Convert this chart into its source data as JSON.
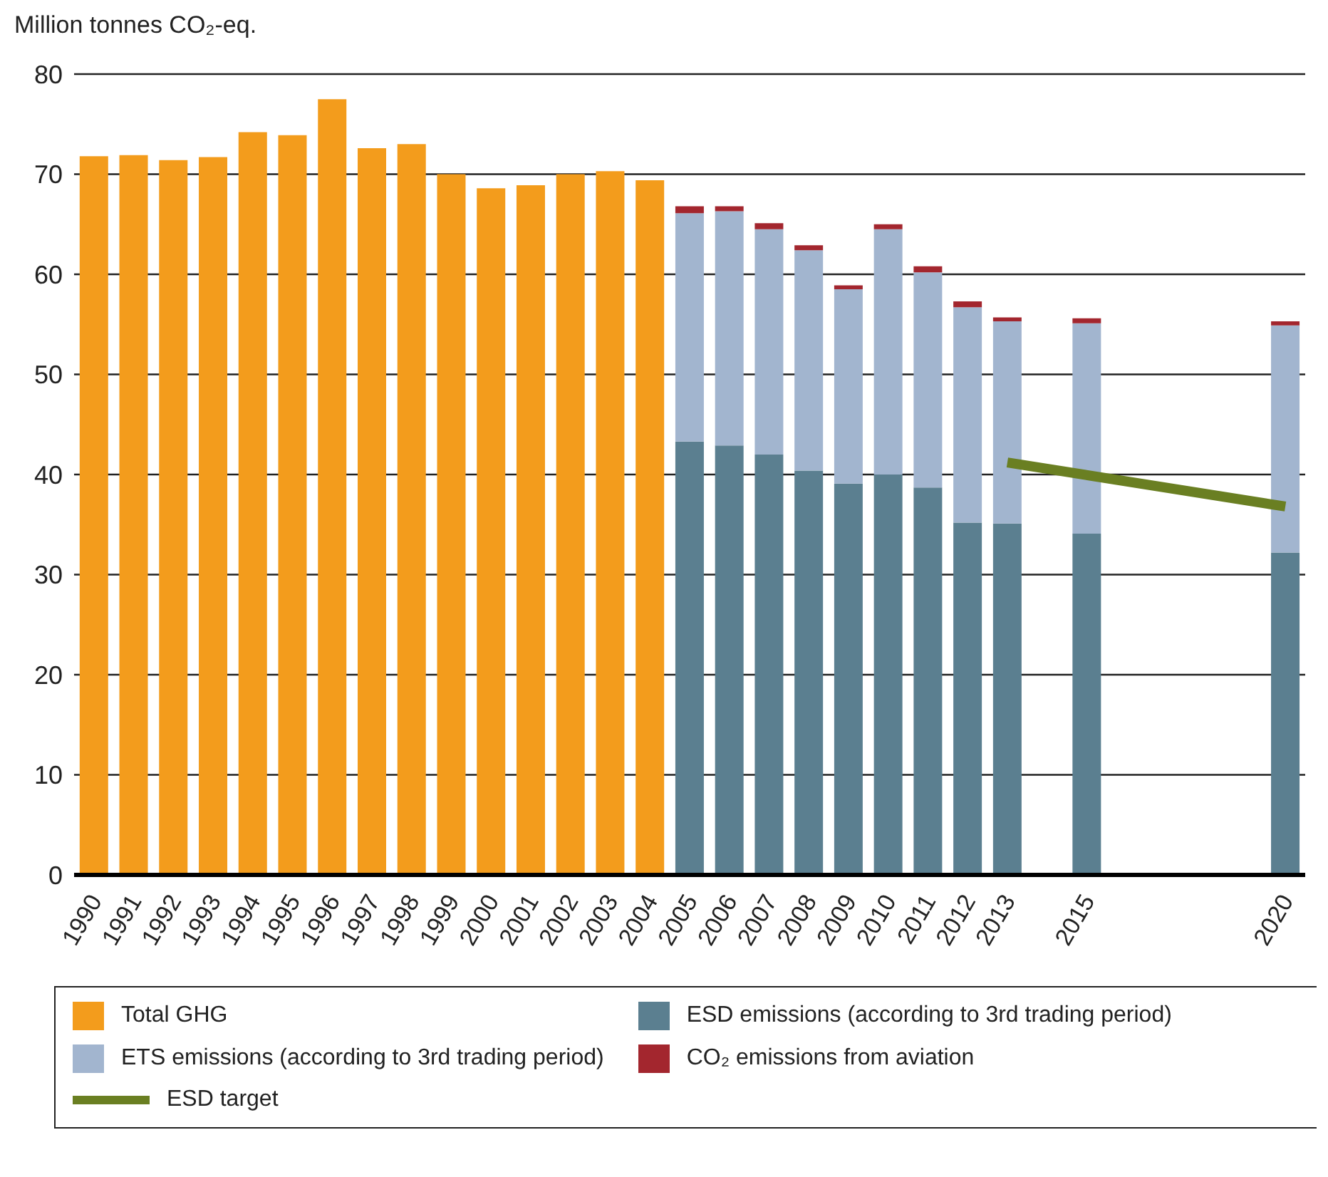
{
  "chart_data": {
    "type": "bar",
    "ylabel": "Million tonnes CO₂-eq.",
    "categories": [
      "1990",
      "1991",
      "1992",
      "1993",
      "1994",
      "1995",
      "1996",
      "1997",
      "1998",
      "1999",
      "2000",
      "2001",
      "2002",
      "2003",
      "2004",
      "2005",
      "2006",
      "2007",
      "2008",
      "2009",
      "2010",
      "2011",
      "2012",
      "2013",
      null,
      "2015",
      null,
      null,
      null,
      null,
      "2020"
    ],
    "stacked": true,
    "series": [
      {
        "name": "Total GHG",
        "color": "#f39c1c",
        "values": [
          71.8,
          71.9,
          71.4,
          71.7,
          74.2,
          73.9,
          77.5,
          72.6,
          73.0,
          70.0,
          68.6,
          68.9,
          70.0,
          70.3,
          69.4,
          null,
          null,
          null,
          null,
          null,
          null,
          null,
          null,
          null,
          null,
          null,
          null,
          null,
          null,
          null,
          null
        ]
      },
      {
        "name": "ESD emissions (according to 3rd trading period)",
        "color": "#5b7f90",
        "values": [
          null,
          null,
          null,
          null,
          null,
          null,
          null,
          null,
          null,
          null,
          null,
          null,
          null,
          null,
          null,
          43.3,
          42.9,
          42.0,
          40.4,
          39.1,
          40.0,
          38.7,
          35.2,
          35.1,
          null,
          34.1,
          null,
          null,
          null,
          null,
          32.2
        ]
      },
      {
        "name": "ETS emissions (according to 3rd trading period)",
        "color": "#a2b5cf",
        "values": [
          null,
          null,
          null,
          null,
          null,
          null,
          null,
          null,
          null,
          null,
          null,
          null,
          null,
          null,
          null,
          22.8,
          23.4,
          22.5,
          22.0,
          19.4,
          24.5,
          21.5,
          21.5,
          20.2,
          null,
          21.0,
          null,
          null,
          null,
          null,
          22.7
        ]
      },
      {
        "name": "CO₂ emissions from aviation",
        "color": "#a3262e",
        "values": [
          null,
          null,
          null,
          null,
          null,
          null,
          null,
          null,
          null,
          null,
          null,
          null,
          null,
          null,
          null,
          0.7,
          0.5,
          0.6,
          0.5,
          0.4,
          0.5,
          0.6,
          0.6,
          0.4,
          null,
          0.5,
          null,
          null,
          null,
          null,
          0.4
        ]
      },
      {
        "name": "ESD target",
        "type": "line",
        "color": "#6a7f22",
        "values": [
          null,
          null,
          null,
          null,
          null,
          null,
          null,
          null,
          null,
          null,
          null,
          null,
          null,
          null,
          null,
          null,
          null,
          null,
          null,
          null,
          null,
          null,
          null,
          41.2,
          null,
          null,
          null,
          null,
          null,
          null,
          36.8
        ]
      }
    ],
    "ylim": [
      0,
      80
    ],
    "yticks": [
      0,
      10,
      20,
      30,
      40,
      50,
      60,
      70,
      80
    ],
    "grid": "y",
    "legend": "bottom"
  }
}
